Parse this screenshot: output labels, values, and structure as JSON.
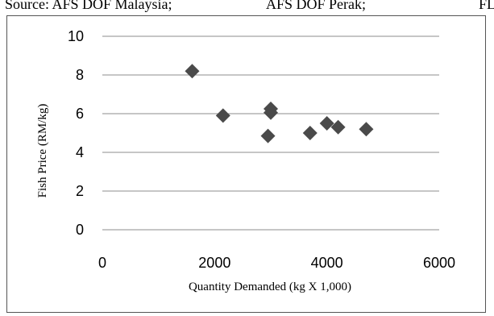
{
  "caption": {
    "part1": "Source:  AFS DOF Malaysia;",
    "part2": "AFS DOF Perak;",
    "part3": "FL"
  },
  "chart_data": {
    "type": "scatter",
    "title": "",
    "xlabel": "Quantity Demanded (kg X 1,000)",
    "ylabel": "Fish Price (RM/kg)",
    "xlim": [
      0,
      6000
    ],
    "ylim": [
      0,
      10
    ],
    "xticks": [
      0,
      2000,
      4000,
      6000
    ],
    "yticks": [
      0,
      2,
      4,
      6,
      8,
      10
    ],
    "grid": "horizontal",
    "marker": "diamond",
    "marker_color": "#4a4a4a",
    "points": [
      {
        "x": 1600,
        "y": 8.2
      },
      {
        "x": 2150,
        "y": 5.9
      },
      {
        "x": 2950,
        "y": 4.85
      },
      {
        "x": 3000,
        "y": 6.25
      },
      {
        "x": 3000,
        "y": 6.05
      },
      {
        "x": 3700,
        "y": 5.0
      },
      {
        "x": 4000,
        "y": 5.5
      },
      {
        "x": 4200,
        "y": 5.3
      },
      {
        "x": 4700,
        "y": 5.2
      }
    ]
  }
}
